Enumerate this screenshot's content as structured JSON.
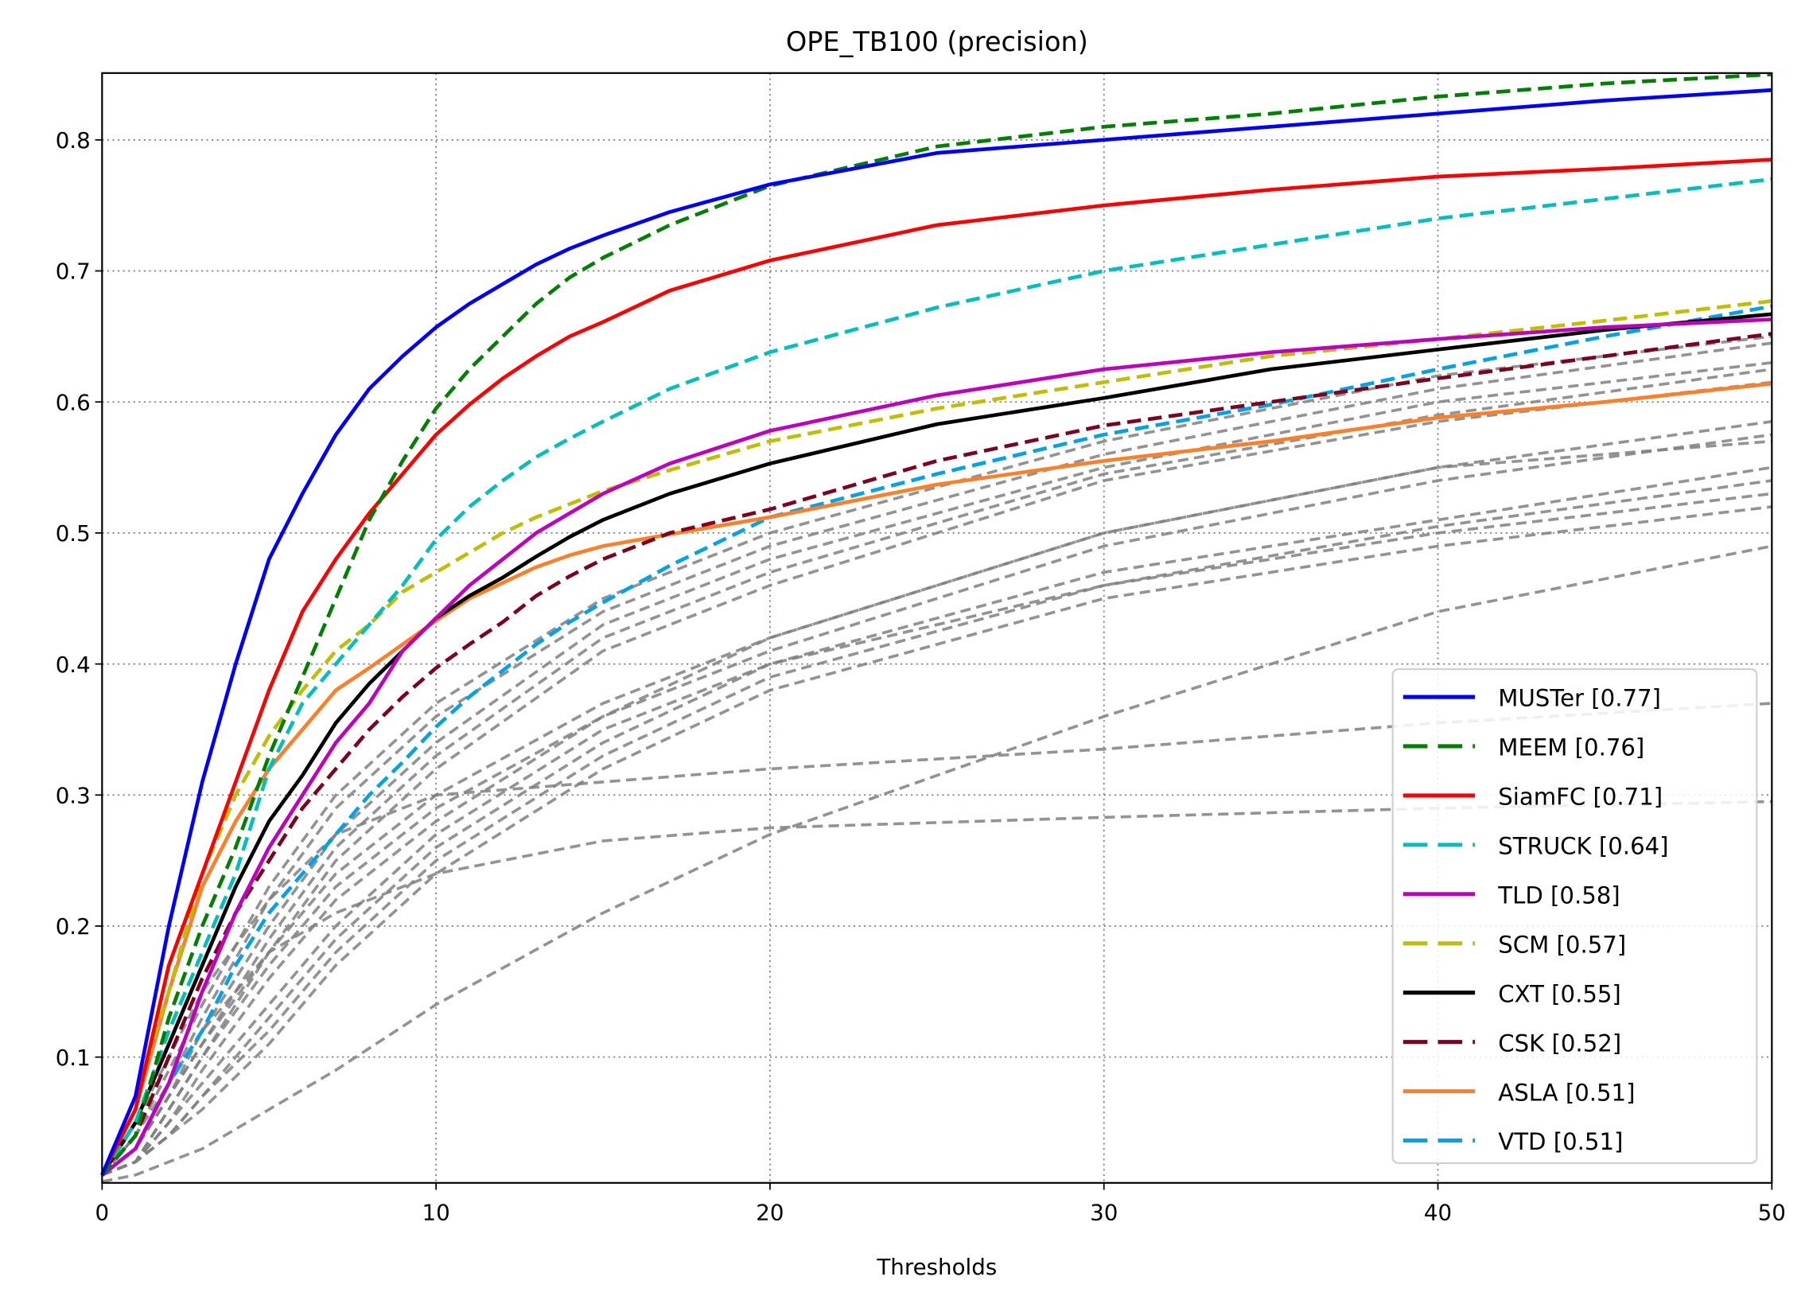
{
  "chart_data": {
    "type": "line",
    "title": "OPE_TB100 (precision)",
    "xlabel": "Thresholds",
    "ylabel": "",
    "xlim": [
      0,
      50
    ],
    "ylim": [
      0.004,
      0.851
    ],
    "xticks": [
      "0",
      "10",
      "20",
      "30",
      "40",
      "50"
    ],
    "yticks": [
      "0.1",
      "0.2",
      "0.3",
      "0.4",
      "0.5",
      "0.6",
      "0.7",
      "0.8"
    ],
    "grid": true,
    "legend_position": "bottom-right",
    "x": [
      0,
      1,
      2,
      3,
      4,
      5,
      6,
      7,
      8,
      9,
      10,
      11,
      12,
      13,
      14,
      15,
      17,
      20,
      25,
      30,
      35,
      40,
      45,
      50
    ],
    "series": [
      {
        "name": "MUSTer [0.77]",
        "color": "#0000ff",
        "dashed": false,
        "values": [
          0.01,
          0.07,
          0.2,
          0.31,
          0.4,
          0.48,
          0.53,
          0.575,
          0.61,
          0.635,
          0.657,
          0.675,
          0.69,
          0.705,
          0.717,
          0.727,
          0.745,
          0.766,
          0.79,
          0.8,
          0.81,
          0.82,
          0.83,
          0.838
        ]
      },
      {
        "name": "MEEM [0.76]",
        "color": "#008000",
        "dashed": true,
        "values": [
          0.01,
          0.04,
          0.13,
          0.2,
          0.26,
          0.33,
          0.39,
          0.45,
          0.51,
          0.555,
          0.595,
          0.625,
          0.65,
          0.675,
          0.695,
          0.71,
          0.735,
          0.765,
          0.795,
          0.81,
          0.82,
          0.833,
          0.843,
          0.85
        ]
      },
      {
        "name": "SiamFC [0.71]",
        "color": "#ff0000",
        "dashed": false,
        "values": [
          0.01,
          0.06,
          0.17,
          0.24,
          0.31,
          0.38,
          0.44,
          0.48,
          0.515,
          0.545,
          0.575,
          0.598,
          0.618,
          0.635,
          0.65,
          0.661,
          0.685,
          0.708,
          0.735,
          0.75,
          0.762,
          0.772,
          0.778,
          0.785
        ]
      },
      {
        "name": "STRUCK [0.64]",
        "color": "#00bfbf",
        "dashed": true,
        "values": [
          0.01,
          0.05,
          0.12,
          0.18,
          0.24,
          0.32,
          0.37,
          0.4,
          0.43,
          0.46,
          0.495,
          0.52,
          0.54,
          0.558,
          0.572,
          0.585,
          0.61,
          0.638,
          0.672,
          0.7,
          0.72,
          0.74,
          0.755,
          0.77
        ]
      },
      {
        "name": "TLD [0.58]",
        "color": "#bf00bf",
        "dashed": false,
        "values": [
          0.01,
          0.03,
          0.08,
          0.15,
          0.21,
          0.26,
          0.3,
          0.34,
          0.37,
          0.41,
          0.435,
          0.46,
          0.48,
          0.5,
          0.515,
          0.53,
          0.553,
          0.578,
          0.605,
          0.625,
          0.638,
          0.648,
          0.657,
          0.663
        ]
      },
      {
        "name": "SCM [0.57]",
        "color": "#bfbf00",
        "dashed": true,
        "values": [
          0.01,
          0.07,
          0.15,
          0.24,
          0.3,
          0.345,
          0.38,
          0.41,
          0.43,
          0.455,
          0.47,
          0.485,
          0.5,
          0.512,
          0.522,
          0.532,
          0.548,
          0.57,
          0.595,
          0.615,
          0.635,
          0.648,
          0.662,
          0.677
        ]
      },
      {
        "name": "CXT [0.55]",
        "color": "#000000",
        "dashed": false,
        "values": [
          0.01,
          0.05,
          0.11,
          0.17,
          0.23,
          0.28,
          0.315,
          0.355,
          0.385,
          0.41,
          0.435,
          0.452,
          0.466,
          0.482,
          0.497,
          0.51,
          0.53,
          0.553,
          0.583,
          0.603,
          0.625,
          0.64,
          0.655,
          0.667
        ]
      },
      {
        "name": "CSK [0.52]",
        "color": "#800020",
        "dashed": true,
        "values": [
          0.01,
          0.04,
          0.1,
          0.16,
          0.21,
          0.25,
          0.29,
          0.32,
          0.35,
          0.375,
          0.397,
          0.415,
          0.432,
          0.452,
          0.467,
          0.48,
          0.5,
          0.518,
          0.555,
          0.582,
          0.6,
          0.618,
          0.635,
          0.652
        ]
      },
      {
        "name": "ASLA [0.51]",
        "color": "#ff7f27",
        "dashed": false,
        "values": [
          0.01,
          0.06,
          0.15,
          0.23,
          0.28,
          0.32,
          0.35,
          0.38,
          0.397,
          0.415,
          0.433,
          0.45,
          0.462,
          0.474,
          0.483,
          0.49,
          0.499,
          0.512,
          0.537,
          0.555,
          0.57,
          0.588,
          0.6,
          0.614
        ]
      },
      {
        "name": "VTD [0.51]",
        "color": "#00a2e8",
        "dashed": true,
        "values": [
          0.01,
          0.03,
          0.08,
          0.12,
          0.17,
          0.21,
          0.24,
          0.27,
          0.3,
          0.325,
          0.352,
          0.375,
          0.395,
          0.415,
          0.432,
          0.447,
          0.475,
          0.512,
          0.545,
          0.575,
          0.598,
          0.625,
          0.65,
          0.673
        ]
      }
    ],
    "other_series_color": "#808080",
    "other_series_x": [
      0,
      1,
      2,
      3,
      5,
      7,
      10,
      15,
      20,
      30,
      40,
      50
    ],
    "other_series": [
      [
        0.01,
        0.04,
        0.09,
        0.14,
        0.23,
        0.3,
        0.37,
        0.45,
        0.5,
        0.57,
        0.62,
        0.65
      ],
      [
        0.01,
        0.03,
        0.08,
        0.13,
        0.22,
        0.29,
        0.36,
        0.44,
        0.49,
        0.56,
        0.61,
        0.645
      ],
      [
        0.01,
        0.03,
        0.07,
        0.12,
        0.2,
        0.27,
        0.34,
        0.43,
        0.48,
        0.55,
        0.6,
        0.63
      ],
      [
        0.01,
        0.03,
        0.07,
        0.11,
        0.19,
        0.26,
        0.33,
        0.42,
        0.47,
        0.545,
        0.59,
        0.625
      ],
      [
        0.01,
        0.02,
        0.06,
        0.1,
        0.18,
        0.25,
        0.32,
        0.41,
        0.46,
        0.54,
        0.585,
        0.615
      ],
      [
        0.01,
        0.03,
        0.07,
        0.11,
        0.18,
        0.24,
        0.3,
        0.37,
        0.42,
        0.5,
        0.55,
        0.585
      ],
      [
        0.01,
        0.02,
        0.06,
        0.1,
        0.17,
        0.23,
        0.29,
        0.36,
        0.41,
        0.49,
        0.54,
        0.575
      ],
      [
        0.01,
        0.02,
        0.05,
        0.09,
        0.16,
        0.22,
        0.28,
        0.36,
        0.42,
        0.5,
        0.55,
        0.57
      ],
      [
        0.01,
        0.02,
        0.05,
        0.08,
        0.14,
        0.2,
        0.27,
        0.35,
        0.4,
        0.47,
        0.51,
        0.55
      ],
      [
        0.01,
        0.02,
        0.04,
        0.07,
        0.13,
        0.19,
        0.26,
        0.34,
        0.4,
        0.46,
        0.505,
        0.54
      ],
      [
        0.01,
        0.02,
        0.04,
        0.07,
        0.12,
        0.18,
        0.25,
        0.33,
        0.39,
        0.46,
        0.5,
        0.53
      ],
      [
        0.01,
        0.02,
        0.04,
        0.06,
        0.11,
        0.17,
        0.24,
        0.32,
        0.38,
        0.45,
        0.49,
        0.52
      ],
      [
        0.005,
        0.01,
        0.02,
        0.03,
        0.06,
        0.09,
        0.14,
        0.21,
        0.27,
        0.36,
        0.44,
        0.49
      ],
      [
        0.01,
        0.05,
        0.1,
        0.15,
        0.22,
        0.27,
        0.3,
        0.31,
        0.32,
        0.335,
        0.355,
        0.37
      ],
      [
        0.01,
        0.04,
        0.08,
        0.12,
        0.18,
        0.21,
        0.24,
        0.265,
        0.275,
        0.283,
        0.29,
        0.295
      ]
    ]
  }
}
